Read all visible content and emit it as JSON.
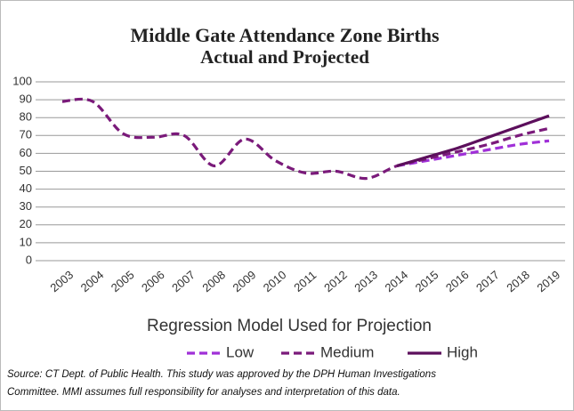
{
  "chart_data": {
    "type": "line",
    "title": "Middle Gate Attendance Zone Births",
    "subtitle": "Actual and Projected",
    "legend_title": "Regression Model Used for Projection",
    "source": [
      "Source: CT Dept. of Public Health. This study was approved by the DPH Human Investigations",
      "Committee. MMI assumes full responsibility for analyses and interpretation of this data."
    ],
    "categories": [
      "2003",
      "2004",
      "2005",
      "2006",
      "2007",
      "2008",
      "2009",
      "2010",
      "2011",
      "2012",
      "2013",
      "2014",
      "2015",
      "2016",
      "2017",
      "2018",
      "2019"
    ],
    "series": [
      {
        "name": "Low",
        "color": "#a030d8",
        "dash": true,
        "values": [
          null,
          null,
          null,
          null,
          null,
          null,
          null,
          null,
          null,
          null,
          null,
          53,
          56,
          59,
          62,
          65,
          67
        ]
      },
      {
        "name": "Medium",
        "color": "#7a1a7a",
        "dash": true,
        "values": [
          89,
          89,
          71,
          69,
          70,
          53,
          68,
          56,
          49,
          50,
          46,
          53,
          57,
          61,
          65,
          70,
          74
        ]
      },
      {
        "name": "High",
        "color": "#5c0f5c",
        "dash": false,
        "values": [
          null,
          null,
          null,
          null,
          null,
          null,
          null,
          null,
          null,
          null,
          null,
          53,
          58,
          63,
          69,
          75,
          81
        ]
      }
    ],
    "ylim": [
      0,
      100
    ],
    "yticks": [
      0,
      10,
      20,
      30,
      40,
      50,
      60,
      70,
      80,
      90,
      100
    ],
    "grid": true,
    "legend": "bottom"
  }
}
